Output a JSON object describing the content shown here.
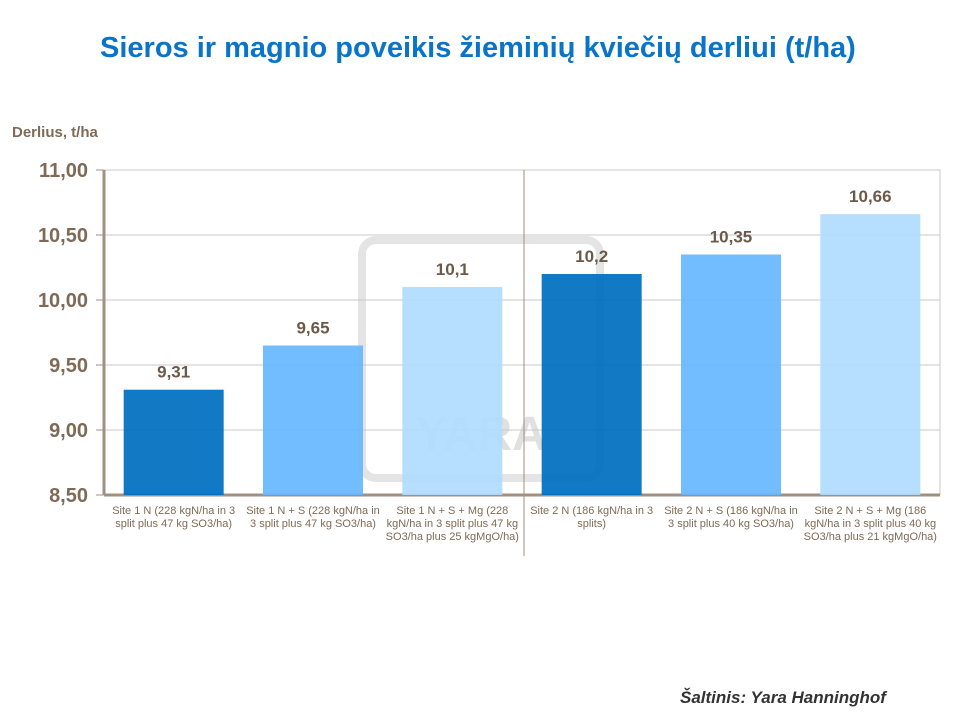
{
  "title": "Sieros ir magnio poveikis žieminių kviečių derliui (t/ha)",
  "source": "Šaltinis: Yara Hanninghof",
  "watermark": "YARA",
  "chart_data": {
    "type": "bar",
    "title": "Sieros ir magnio poveikis žieminių kviečių derliui (t/ha)",
    "ylabel": "Derlius, t/ha",
    "xlabel": "",
    "ylim": [
      8.5,
      11.0
    ],
    "yticks": [
      "8,50",
      "9,00",
      "9,50",
      "10,00",
      "10,50",
      "11,00"
    ],
    "ytick_values": [
      8.5,
      9.0,
      9.5,
      10.0,
      10.5,
      11.0
    ],
    "grid": true,
    "categories": [
      "Site 1 N (228 kgN/ha in 3 split plus 47 kg SO3/ha)",
      "Site 1 N + S (228 kgN/ha in 3 split plus 47 kg SO3/ha)",
      "Site 1 N + S + Mg (228 kgN/ha in 3 split plus 47 kg SO3/ha plus 25 kgMgO/ha)",
      "Site 2 N (186 kgN/ha in 3 splits)",
      "Site 2 N + S (186 kgN/ha in 3 split plus 40 kg SO3/ha)",
      "Site 2 N + S + Mg (186 kgN/ha in 3 split plus 40 kg SO3/ha plus 21 kgMgO/ha)"
    ],
    "values": [
      9.31,
      9.65,
      10.1,
      10.2,
      10.35,
      10.66
    ],
    "data_labels": [
      "9,31",
      "9,65",
      "10,1",
      "10,2",
      "10,35",
      "10,66"
    ],
    "colors": [
      "#0070c0",
      "#66b8ff",
      "#b0dbff",
      "#0070c0",
      "#66b8ff",
      "#b0dbff"
    ]
  }
}
